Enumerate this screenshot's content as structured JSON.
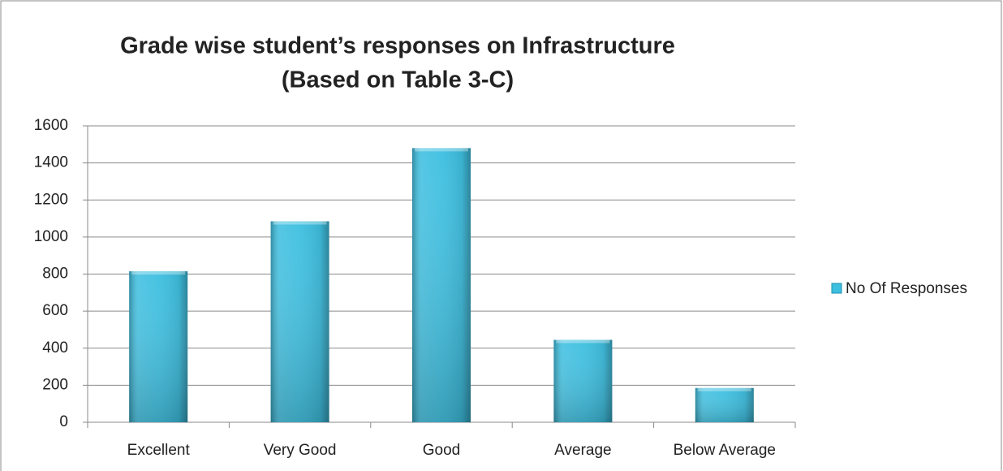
{
  "chart_data": {
    "type": "bar",
    "title": "Grade wise student’s responses on Infrastructure",
    "subtitle": "(Based on Table 3-C)",
    "categories": [
      "Excellent",
      "Very Good",
      "Good",
      "Average",
      "Below Average"
    ],
    "series": [
      {
        "name": "No Of Responses",
        "color": "#3dbfe0",
        "values": [
          815,
          1085,
          1480,
          445,
          185
        ]
      }
    ],
    "ylim": [
      0,
      1600
    ],
    "yticks": [
      0,
      200,
      400,
      600,
      800,
      1000,
      1200,
      1400,
      1600
    ],
    "grid": true,
    "legend": "right"
  }
}
